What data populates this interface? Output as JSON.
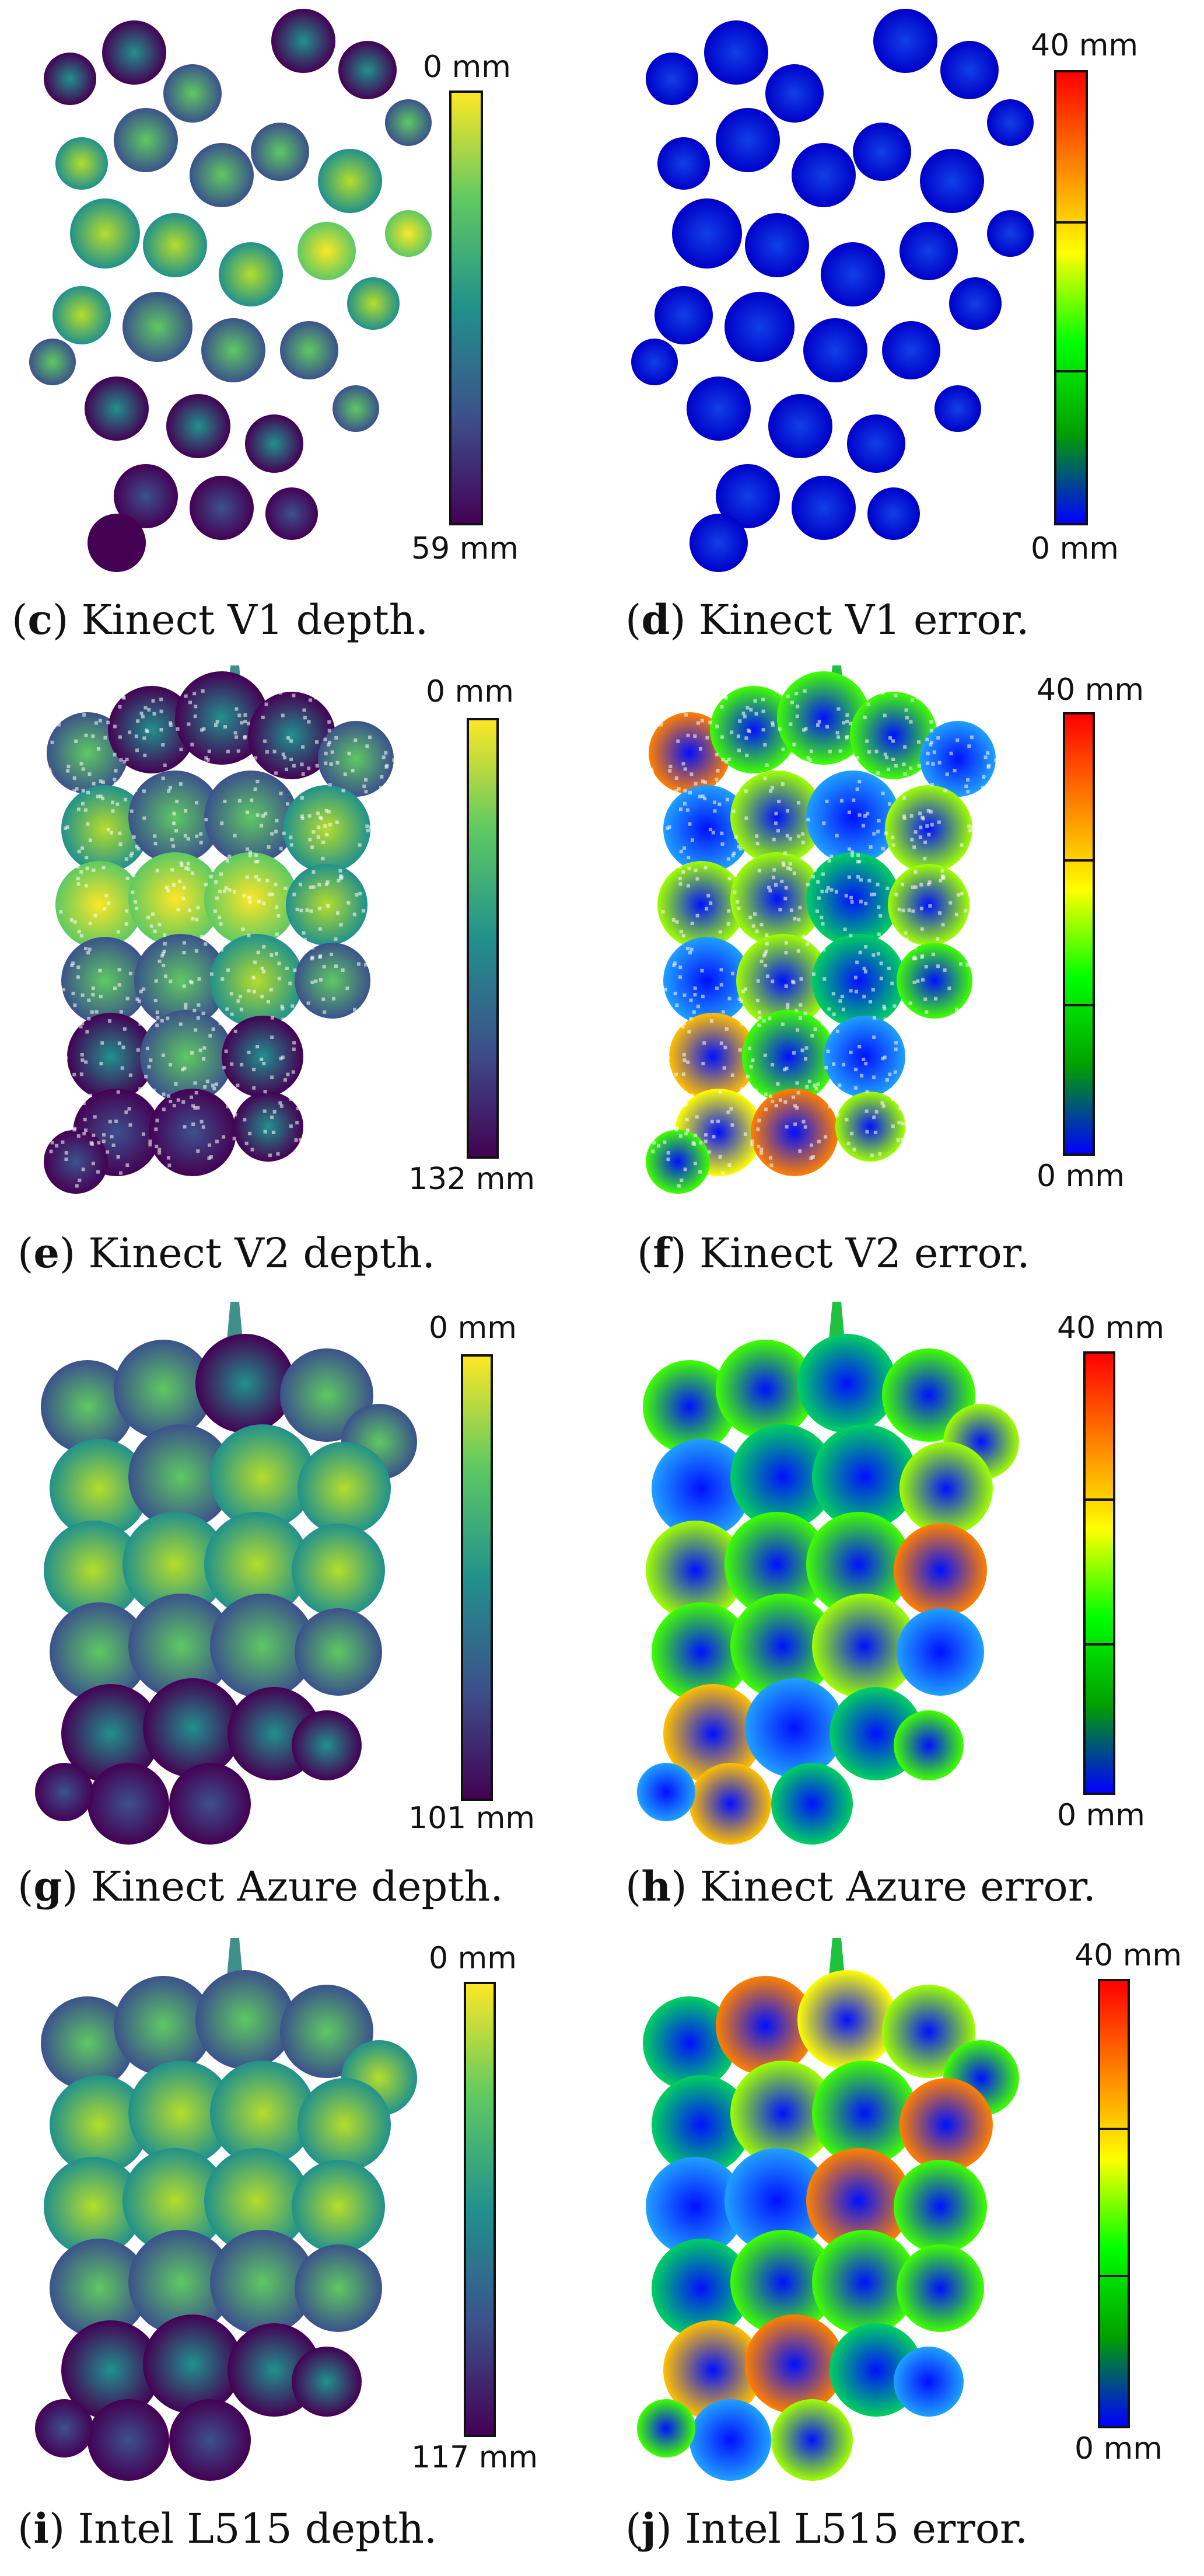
{
  "figure": {
    "panels": [
      {
        "letter": "c",
        "caption": "Kinect V1 depth.",
        "colormap": "viridis",
        "cb_top": "0 mm",
        "cb_bottom": "59 mm",
        "style": "blobs",
        "seed": 11
      },
      {
        "letter": "d",
        "caption": "Kinect V1 error.",
        "colormap": "jet",
        "cb_top": "40 mm",
        "cb_bottom": "0 mm",
        "style": "blobs",
        "seed": 11
      },
      {
        "letter": "e",
        "caption": "Kinect V2 depth.",
        "colormap": "viridis",
        "cb_top": "0 mm",
        "cb_bottom": "132 mm",
        "style": "dots",
        "seed": 23
      },
      {
        "letter": "f",
        "caption": "Kinect V2 error.",
        "colormap": "jet",
        "cb_top": "40 mm",
        "cb_bottom": "0 mm",
        "style": "dots",
        "seed": 23
      },
      {
        "letter": "g",
        "caption": "Kinect Azure depth.",
        "colormap": "viridis",
        "cb_top": "0 mm",
        "cb_bottom": "101 mm",
        "style": "dense",
        "seed": 37
      },
      {
        "letter": "h",
        "caption": "Kinect Azure error.",
        "colormap": "jet",
        "cb_top": "40 mm",
        "cb_bottom": "0 mm",
        "style": "dense",
        "seed": 37
      },
      {
        "letter": "i",
        "caption": "Intel L515 depth.",
        "colormap": "viridis",
        "cb_top": "0 mm",
        "cb_bottom": "117 mm",
        "style": "dense",
        "seed": 51
      },
      {
        "letter": "j",
        "caption": "Intel L515 error.",
        "colormap": "jet",
        "cb_top": "40 mm",
        "cb_bottom": "0 mm",
        "style": "dense",
        "seed": 51
      }
    ]
  }
}
